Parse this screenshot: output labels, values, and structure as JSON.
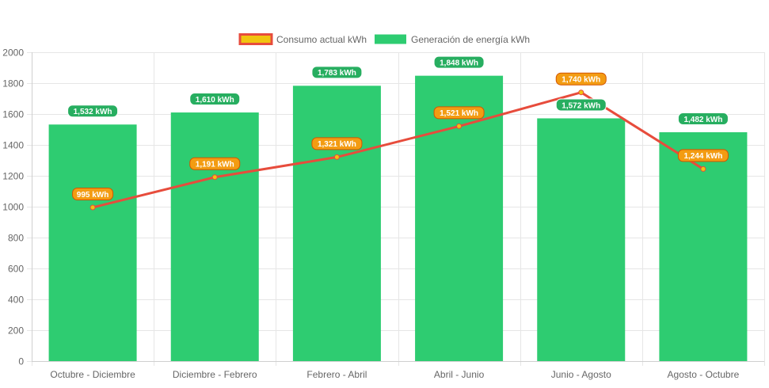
{
  "chart_data": {
    "type": "bar",
    "categories": [
      "Octubre - Diciembre",
      "Diciembre - Febrero",
      "Febrero - Abril",
      "Abril - Junio",
      "Junio - Agosto",
      "Agosto - Octubre"
    ],
    "series": [
      {
        "name": "Consumo actual kWh",
        "type": "line",
        "values": [
          995,
          1191,
          1321,
          1521,
          1740,
          1244
        ],
        "labels": [
          "995 kWh",
          "1,191 kWh",
          "1,321 kWh",
          "1,521 kWh",
          "1,740 kWh",
          "1,244 kWh"
        ],
        "color": "#e74c3c",
        "fill_color": "#f1c40f"
      },
      {
        "name": "Generación de energía kWh",
        "type": "bar",
        "values": [
          1532,
          1610,
          1783,
          1848,
          1572,
          1482
        ],
        "labels": [
          "1,532 kWh",
          "1,610 kWh",
          "1,783 kWh",
          "1,848 kWh",
          "1,572 kWh",
          "1,482 kWh"
        ],
        "color": "#2ecc71"
      }
    ],
    "ylim": [
      0,
      2000
    ],
    "yticks": [
      "0",
      "200",
      "400",
      "600",
      "800",
      "1000",
      "1200",
      "1400",
      "1600",
      "1800",
      "2000"
    ],
    "grid": true,
    "legend_position": "top-center",
    "title": "",
    "xlabel": "",
    "ylabel": ""
  }
}
